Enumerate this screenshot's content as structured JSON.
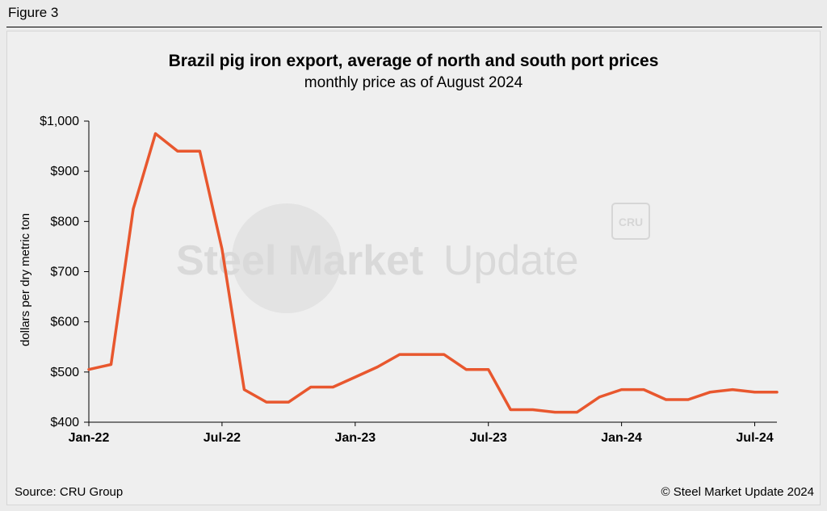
{
  "figure_label": "Figure 3",
  "source": "Source: CRU Group",
  "copyright": "© Steel Market Update 2024",
  "watermark": {
    "brand": "Steel Market Update",
    "brand_bold": "Steel Market",
    "brand_light": "Update",
    "logo": "CRU"
  },
  "chart_data": {
    "type": "line",
    "title": "Brazil pig iron export, average of north and south port prices",
    "subtitle": "monthly price as of August 2024",
    "xlabel": "",
    "ylabel": "dollars per dry metric ton",
    "ylim": [
      400,
      1000
    ],
    "yticks": [
      400,
      500,
      600,
      700,
      800,
      900,
      1000
    ],
    "ytick_labels": [
      "$400",
      "$500",
      "$600",
      "$700",
      "$800",
      "$900",
      "$1,000"
    ],
    "xtick_labels": [
      "Jan-22",
      "Jul-22",
      "Jan-23",
      "Jul-23",
      "Jan-24",
      "Jul-24"
    ],
    "x": [
      "Jan-22",
      "Feb-22",
      "Mar-22",
      "Apr-22",
      "May-22",
      "Jun-22",
      "Jul-22",
      "Aug-22",
      "Sep-22",
      "Oct-22",
      "Nov-22",
      "Dec-22",
      "Jan-23",
      "Feb-23",
      "Mar-23",
      "Apr-23",
      "May-23",
      "Jun-23",
      "Jul-23",
      "Aug-23",
      "Sep-23",
      "Oct-23",
      "Nov-23",
      "Dec-23",
      "Jan-24",
      "Feb-24",
      "Mar-24",
      "Apr-24",
      "May-24",
      "Jun-24",
      "Jul-24",
      "Aug-24"
    ],
    "grid": false,
    "series": [
      {
        "color": "#e8572e",
        "values": [
          505,
          515,
          825,
          975,
          940,
          940,
          745,
          465,
          440,
          440,
          470,
          470,
          490,
          510,
          535,
          535,
          535,
          505,
          505,
          425,
          425,
          420,
          420,
          450,
          465,
          465,
          445,
          445,
          460,
          465,
          460,
          460
        ]
      }
    ]
  }
}
